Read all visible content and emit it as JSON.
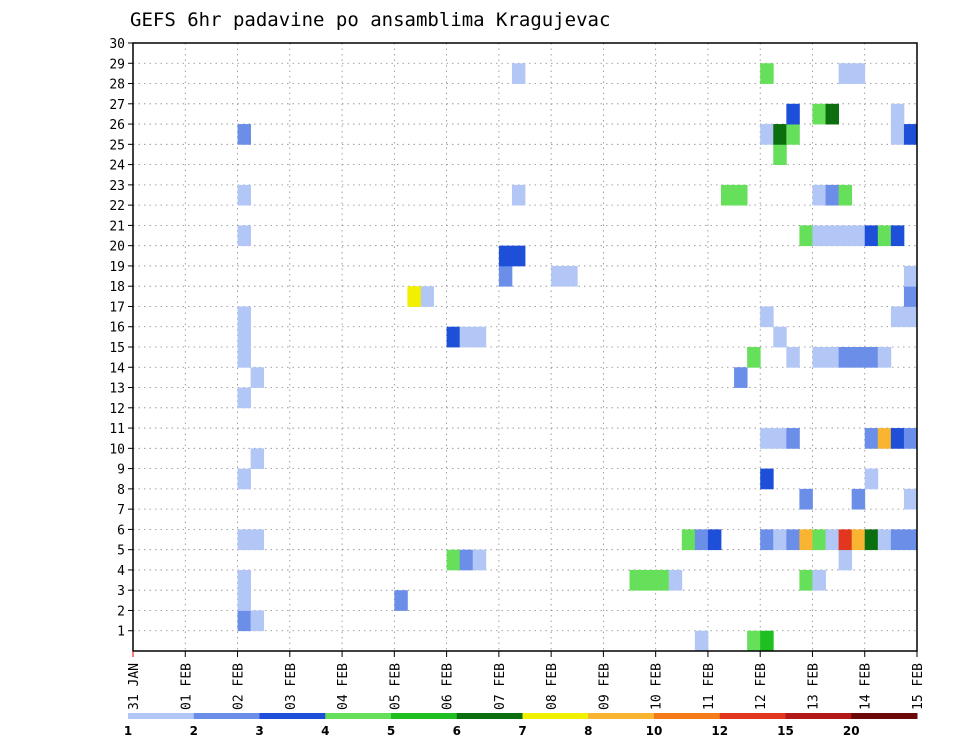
{
  "title": "GEFS 6hr padavine po ansamblima Kragujevac",
  "chart_data": {
    "type": "heatmap",
    "title": "GEFS 6hr padavine po ansamblima Kragujevac",
    "x_tick_labels": [
      "31 JAN",
      "01 FEB",
      "02 FEB",
      "03 FEB",
      "04 FEB",
      "05 FEB",
      "06 FEB",
      "07 FEB",
      "08 FEB",
      "09 FEB",
      "10 FEB",
      "11 FEB",
      "12 FEB",
      "13 FEB",
      "14 FEB",
      "15 FEB"
    ],
    "y_tick_labels": [
      "1",
      "2",
      "3",
      "4",
      "5",
      "6",
      "7",
      "8",
      "9",
      "10",
      "11",
      "12",
      "13",
      "14",
      "15",
      "16",
      "17",
      "18",
      "19",
      "20",
      "21",
      "22",
      "23",
      "24",
      "25",
      "26",
      "27",
      "28",
      "29",
      "30"
    ],
    "x_unit": "day (6-hourly steps, 4 per day)",
    "y_unit": "ensemble member",
    "ylim": [
      0,
      30
    ],
    "grid": true,
    "colorbar": {
      "ticks": [
        "1",
        "2",
        "3",
        "4",
        "5",
        "6",
        "7",
        "8",
        "10",
        "12",
        "15",
        "20"
      ],
      "colors": [
        "#b3c7f7",
        "#6b8fe8",
        "#1e4fd8",
        "#66e05a",
        "#1fbf22",
        "#0b6e0f",
        "#f0f000",
        "#f9b431",
        "#f47b18",
        "#e3361e",
        "#b31818",
        "#6b0808"
      ]
    },
    "cells": [
      {
        "member": 1,
        "day": 2.0,
        "level": 2
      },
      {
        "member": 1,
        "day": 2.25,
        "level": 1
      },
      {
        "member": 2,
        "day": 2.0,
        "level": 1
      },
      {
        "member": 3,
        "day": 2.0,
        "level": 1
      },
      {
        "member": 5,
        "day": 2.0,
        "level": 1
      },
      {
        "member": 5,
        "day": 2.25,
        "level": 1
      },
      {
        "member": 8,
        "day": 2.0,
        "level": 1
      },
      {
        "member": 9,
        "day": 2.25,
        "level": 1
      },
      {
        "member": 12,
        "day": 2.0,
        "level": 1
      },
      {
        "member": 13,
        "day": 2.25,
        "level": 1
      },
      {
        "member": 14,
        "day": 2.0,
        "level": 1
      },
      {
        "member": 15,
        "day": 2.0,
        "level": 1
      },
      {
        "member": 16,
        "day": 2.0,
        "level": 1
      },
      {
        "member": 20,
        "day": 2.0,
        "level": 1
      },
      {
        "member": 22,
        "day": 2.0,
        "level": 1
      },
      {
        "member": 25,
        "day": 2.0,
        "level": 2
      },
      {
        "member": 2,
        "day": 5.0,
        "level": 2
      },
      {
        "member": 17,
        "day": 5.5,
        "level": 1
      },
      {
        "member": 17,
        "day": 5.25,
        "level": 7
      },
      {
        "member": 4,
        "day": 6.0,
        "level": 4
      },
      {
        "member": 4,
        "day": 6.25,
        "level": 2
      },
      {
        "member": 4,
        "day": 6.5,
        "level": 1
      },
      {
        "member": 15,
        "day": 6.0,
        "level": 3
      },
      {
        "member": 15,
        "day": 6.25,
        "level": 1
      },
      {
        "member": 15,
        "day": 6.5,
        "level": 1
      },
      {
        "member": 18,
        "day": 7.0,
        "level": 2
      },
      {
        "member": 19,
        "day": 7.0,
        "level": 3
      },
      {
        "member": 19,
        "day": 7.25,
        "level": 3
      },
      {
        "member": 28,
        "day": 7.25,
        "level": 1
      },
      {
        "member": 22,
        "day": 7.25,
        "level": 1
      },
      {
        "member": 18,
        "day": 8.0,
        "level": 1
      },
      {
        "member": 18,
        "day": 8.25,
        "level": 1
      },
      {
        "member": 3,
        "day": 9.5,
        "level": 4
      },
      {
        "member": 3,
        "day": 9.75,
        "level": 4
      },
      {
        "member": 3,
        "day": 10.0,
        "level": 4
      },
      {
        "member": 3,
        "day": 10.25,
        "level": 1
      },
      {
        "member": 0,
        "day": 10.75,
        "level": 1
      },
      {
        "member": 5,
        "day": 10.5,
        "level": 4
      },
      {
        "member": 5,
        "day": 10.75,
        "level": 2
      },
      {
        "member": 5,
        "day": 11.0,
        "level": 3
      },
      {
        "member": 0,
        "day": 11.75,
        "level": 4
      },
      {
        "member": 0,
        "day": 12.0,
        "level": 5
      },
      {
        "member": 13,
        "day": 11.5,
        "level": 2
      },
      {
        "member": 14,
        "day": 11.75,
        "level": 4
      },
      {
        "member": 22,
        "day": 11.25,
        "level": 4
      },
      {
        "member": 22,
        "day": 11.5,
        "level": 4
      },
      {
        "member": 3,
        "day": 12.75,
        "level": 4
      },
      {
        "member": 3,
        "day": 13.0,
        "level": 1
      },
      {
        "member": 4,
        "day": 13.5,
        "level": 1
      },
      {
        "member": 5,
        "day": 12.0,
        "level": 2
      },
      {
        "member": 5,
        "day": 12.25,
        "level": 1
      },
      {
        "member": 5,
        "day": 12.5,
        "level": 2
      },
      {
        "member": 5,
        "day": 12.75,
        "level": 8
      },
      {
        "member": 5,
        "day": 13.0,
        "level": 4
      },
      {
        "member": 5,
        "day": 13.25,
        "level": 1
      },
      {
        "member": 5,
        "day": 13.5,
        "level": 10
      },
      {
        "member": 5,
        "day": 13.75,
        "level": 8
      },
      {
        "member": 5,
        "day": 14.0,
        "level": 6
      },
      {
        "member": 5,
        "day": 14.25,
        "level": 1
      },
      {
        "member": 5,
        "day": 14.5,
        "level": 2
      },
      {
        "member": 5,
        "day": 14.75,
        "level": 2
      },
      {
        "member": 7,
        "day": 12.75,
        "level": 2
      },
      {
        "member": 7,
        "day": 13.75,
        "level": 2
      },
      {
        "member": 7,
        "day": 14.75,
        "level": 1
      },
      {
        "member": 8,
        "day": 12.0,
        "level": 3
      },
      {
        "member": 8,
        "day": 14.0,
        "level": 1
      },
      {
        "member": 10,
        "day": 12.0,
        "level": 1
      },
      {
        "member": 10,
        "day": 12.25,
        "level": 1
      },
      {
        "member": 10,
        "day": 12.5,
        "level": 2
      },
      {
        "member": 10,
        "day": 14.0,
        "level": 2
      },
      {
        "member": 10,
        "day": 14.25,
        "level": 8
      },
      {
        "member": 10,
        "day": 14.5,
        "level": 3
      },
      {
        "member": 10,
        "day": 14.75,
        "level": 2
      },
      {
        "member": 14,
        "day": 12.5,
        "level": 1
      },
      {
        "member": 14,
        "day": 13.0,
        "level": 1
      },
      {
        "member": 14,
        "day": 13.25,
        "level": 1
      },
      {
        "member": 14,
        "day": 13.5,
        "level": 2
      },
      {
        "member": 14,
        "day": 13.75,
        "level": 2
      },
      {
        "member": 14,
        "day": 14.0,
        "level": 2
      },
      {
        "member": 14,
        "day": 14.25,
        "level": 1
      },
      {
        "member": 15,
        "day": 12.25,
        "level": 1
      },
      {
        "member": 16,
        "day": 12.0,
        "level": 1
      },
      {
        "member": 16,
        "day": 14.5,
        "level": 1
      },
      {
        "member": 16,
        "day": 14.75,
        "level": 1
      },
      {
        "member": 17,
        "day": 14.75,
        "level": 2
      },
      {
        "member": 18,
        "day": 14.75,
        "level": 1
      },
      {
        "member": 20,
        "day": 12.75,
        "level": 4
      },
      {
        "member": 20,
        "day": 13.0,
        "level": 1
      },
      {
        "member": 20,
        "day": 13.25,
        "level": 1
      },
      {
        "member": 20,
        "day": 13.5,
        "level": 1
      },
      {
        "member": 20,
        "day": 13.75,
        "level": 1
      },
      {
        "member": 20,
        "day": 14.0,
        "level": 3
      },
      {
        "member": 20,
        "day": 14.25,
        "level": 4
      },
      {
        "member": 20,
        "day": 14.5,
        "level": 3
      },
      {
        "member": 22,
        "day": 13.0,
        "level": 1
      },
      {
        "member": 22,
        "day": 13.25,
        "level": 2
      },
      {
        "member": 22,
        "day": 13.5,
        "level": 4
      },
      {
        "member": 24,
        "day": 12.25,
        "level": 4
      },
      {
        "member": 25,
        "day": 12.0,
        "level": 1
      },
      {
        "member": 25,
        "day": 12.25,
        "level": 6
      },
      {
        "member": 25,
        "day": 12.5,
        "level": 4
      },
      {
        "member": 25,
        "day": 14.5,
        "level": 1
      },
      {
        "member": 25,
        "day": 14.75,
        "level": 3
      },
      {
        "member": 26,
        "day": 12.5,
        "level": 3
      },
      {
        "member": 26,
        "day": 13.0,
        "level": 4
      },
      {
        "member": 26,
        "day": 13.25,
        "level": 6
      },
      {
        "member": 26,
        "day": 14.5,
        "level": 1
      },
      {
        "member": 28,
        "day": 12.0,
        "level": 4
      },
      {
        "member": 28,
        "day": 13.5,
        "level": 1
      },
      {
        "member": 28,
        "day": 13.75,
        "level": 1
      }
    ]
  }
}
